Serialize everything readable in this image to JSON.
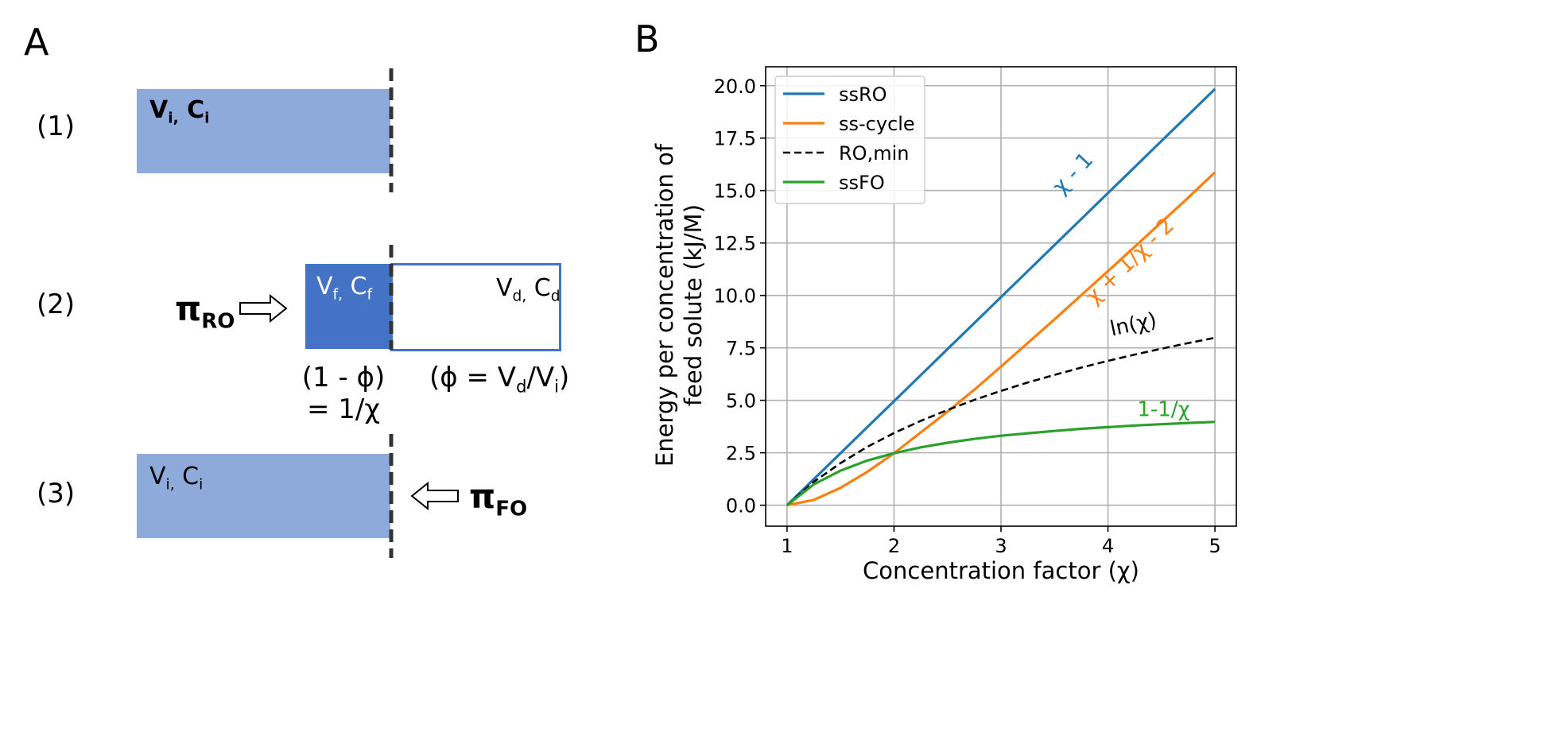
{
  "panel_a": {
    "letter": "A",
    "steps": [
      "(1)",
      "(2)",
      "(3)"
    ],
    "box1": {
      "V": "V",
      "i_sub": "i,",
      "C": " C",
      "c_sub": "i"
    },
    "box2_feed": {
      "V": "V",
      "f_sub": "f,",
      "C": " C",
      "c_sub": "f"
    },
    "box2_draw": {
      "V": "V",
      "d_sub": "d,",
      "C": " C",
      "c_sub": "d"
    },
    "box3": {
      "V": "V",
      "i_sub": "i,",
      "C": " C",
      "c_sub": "i"
    },
    "pi_ro": {
      "symbol": "π",
      "sub": "RO"
    },
    "pi_fo": {
      "symbol": "π",
      "sub": "FO"
    },
    "eq_left_line1": "(1 - ϕ)",
    "eq_left_line2": "= 1/χ",
    "eq_right_prefix": "(ϕ = V",
    "eq_right_sub1": "d",
    "eq_right_mid": "/V",
    "eq_right_sub2": "i",
    "eq_right_suffix": ")",
    "colors": {
      "light_box": "#8eaadb",
      "dark_box": "#4472c4",
      "outline": "#4472c4"
    }
  },
  "panel_b": {
    "letter": "B"
  },
  "chart_data": {
    "type": "line",
    "xlabel": "Concentration factor (χ)",
    "ylabel_line1": "Energy per concentration of",
    "ylabel_line2": "feed solute (kJ/M)",
    "xlim": [
      0.8,
      5.2
    ],
    "ylim": [
      -1.0,
      20.9
    ],
    "xticks": [
      1,
      2,
      3,
      4,
      5
    ],
    "yticks": [
      0.0,
      2.5,
      5.0,
      7.5,
      10.0,
      12.5,
      15.0,
      17.5,
      20.0
    ],
    "ytick_labels": [
      "0.0",
      "2.5",
      "5.0",
      "7.5",
      "10.0",
      "12.5",
      "15.0",
      "17.5",
      "20.0"
    ],
    "xtick_labels": [
      "1",
      "2",
      "3",
      "4",
      "5"
    ],
    "grid": true,
    "legend_position": "upper-left",
    "x": [
      1.0,
      1.25,
      1.5,
      1.75,
      2.0,
      2.25,
      2.5,
      2.75,
      3.0,
      3.25,
      3.5,
      3.75,
      4.0,
      4.25,
      4.5,
      4.75,
      5.0
    ],
    "series": [
      {
        "name": "ssRO",
        "color": "#1f77b4",
        "dash": "solid",
        "annotation": "χ - 1",
        "values": [
          0.0,
          1.24,
          2.48,
          3.72,
          4.96,
          6.2,
          7.44,
          8.68,
          9.92,
          11.16,
          12.4,
          13.64,
          14.88,
          16.12,
          17.36,
          18.6,
          19.84
        ]
      },
      {
        "name": "ss-cycle",
        "color": "#ff7f0e",
        "dash": "solid",
        "annotation": "χ + 1/χ - 2",
        "values": [
          0.0,
          0.25,
          0.83,
          1.59,
          2.48,
          3.47,
          4.46,
          5.5,
          6.61,
          7.73,
          8.86,
          10.01,
          11.16,
          12.32,
          13.49,
          14.66,
          15.87
        ]
      },
      {
        "name": "RO,min",
        "color": "#000000",
        "dash": "dashed",
        "annotation": "ln(χ)",
        "values": [
          0.0,
          1.11,
          2.01,
          2.78,
          3.44,
          4.02,
          4.54,
          5.02,
          5.45,
          5.85,
          6.21,
          6.56,
          6.88,
          7.18,
          7.46,
          7.73,
          7.98
        ]
      },
      {
        "name": "ssFO",
        "color": "#2ca02c",
        "dash": "solid",
        "annotation": "1-1/χ",
        "values": [
          0.0,
          0.99,
          1.65,
          2.13,
          2.48,
          2.76,
          2.98,
          3.16,
          3.31,
          3.43,
          3.54,
          3.64,
          3.72,
          3.8,
          3.86,
          3.92,
          3.97
        ]
      }
    ]
  }
}
